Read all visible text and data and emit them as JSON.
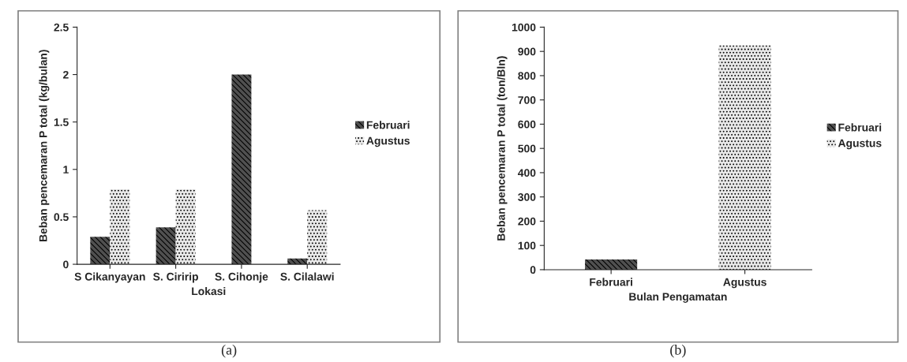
{
  "chart_data": [
    {
      "type": "bar",
      "xlabel": "Lokasi",
      "ylabel": "Beban pencemaran P total (kg/bulan)",
      "categories": [
        "S Cikanyayan",
        "S. Ciririp",
        "S. Cihonje",
        "S. Cilalawi"
      ],
      "series": [
        {
          "name": "Februari",
          "color": "#505050",
          "values": [
            0.29,
            0.39,
            2.0,
            0.06
          ]
        },
        {
          "name": "Agustus",
          "color": "#e8e8e8",
          "values": [
            0.79,
            0.79,
            null,
            0.57
          ]
        }
      ],
      "ylim": [
        0,
        2.5
      ],
      "yticks": [
        0,
        0.5,
        1,
        1.5,
        2,
        2.5
      ],
      "grid": false,
      "legend": "right",
      "annotations": [
        "(a)"
      ]
    },
    {
      "type": "bar",
      "xlabel": "Bulan Pengamatan",
      "ylabel": "Beban pencemaran P total (ton/Bln)",
      "categories": [
        "Februari",
        "Agustus"
      ],
      "series": [
        {
          "name": "Februari",
          "color": "#505050",
          "values": [
            42,
            null
          ]
        },
        {
          "name": "Agustus",
          "color": "#e8e8e8",
          "values": [
            null,
            925
          ]
        }
      ],
      "ylim": [
        0,
        1000
      ],
      "yticks": [
        0,
        100,
        200,
        300,
        400,
        500,
        600,
        700,
        800,
        900,
        1000
      ],
      "grid": false,
      "legend": "right",
      "annotations": [
        "(b)"
      ]
    }
  ]
}
